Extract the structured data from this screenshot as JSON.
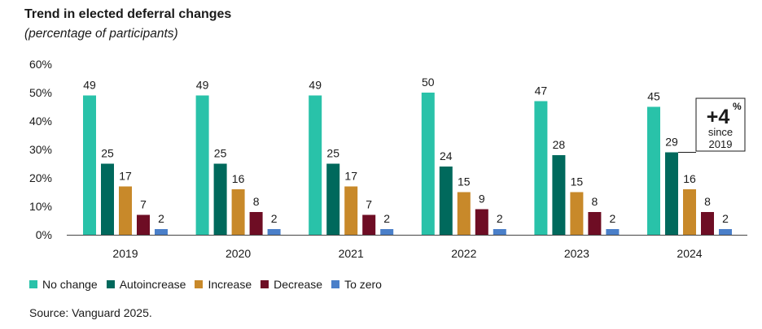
{
  "chart_data": {
    "type": "bar",
    "title": "Trend in elected deferral changes",
    "subtitle": "(percentage of participants)",
    "categories": [
      "2019",
      "2020",
      "2021",
      "2022",
      "2023",
      "2024"
    ],
    "series": [
      {
        "name": "No change",
        "color": "#29c2a9",
        "values": [
          49,
          49,
          49,
          50,
          47,
          45
        ]
      },
      {
        "name": "Autoincrease",
        "color": "#00695c",
        "values": [
          25,
          25,
          25,
          24,
          28,
          29
        ]
      },
      {
        "name": "Increase",
        "color": "#c8892a",
        "values": [
          17,
          16,
          17,
          15,
          15,
          16
        ]
      },
      {
        "name": "Decrease",
        "color": "#6e0d24",
        "values": [
          7,
          8,
          7,
          9,
          8,
          8
        ]
      },
      {
        "name": "To zero",
        "color": "#4a7fc9",
        "values": [
          2,
          2,
          2,
          2,
          2,
          2
        ]
      }
    ],
    "ylim": [
      0,
      60
    ],
    "yticks": [
      0,
      10,
      20,
      30,
      40,
      50,
      60
    ],
    "ytick_labels": [
      "0%",
      "10%",
      "20%",
      "30%",
      "40%",
      "50%",
      "60%"
    ],
    "xlabel": "",
    "ylabel": "",
    "grid": false,
    "legend_position": "bottom-left",
    "annotation": {
      "value": "+4",
      "unit": "%",
      "line1": "since",
      "line2": "2019",
      "category": "2024",
      "series": "Autoincrease"
    }
  },
  "source": "Source: Vanguard 2025."
}
